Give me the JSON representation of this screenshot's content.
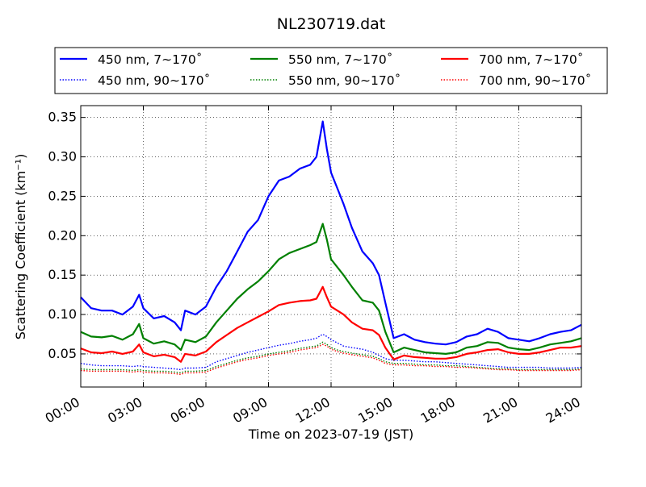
{
  "chart_data": {
    "type": "line",
    "title": "NL230719.dat",
    "xlabel": "Time on 2023-07-19 (JST)",
    "ylabel": "Scattering Coefficient (km⁻¹)",
    "xlim": [
      0,
      24
    ],
    "ylim": [
      0.008,
      0.365
    ],
    "x_unit": "hours",
    "x_ticks": [
      0,
      3,
      6,
      9,
      12,
      15,
      18,
      21,
      24
    ],
    "x_tick_labels": [
      "00:00",
      "03:00",
      "06:00",
      "09:00",
      "12:00",
      "15:00",
      "18:00",
      "21:00",
      "24:00"
    ],
    "y_ticks": [
      0.05,
      0.1,
      0.15,
      0.2,
      0.25,
      0.3,
      0.35
    ],
    "y_tick_labels": [
      "0.05",
      "0.10",
      "0.15",
      "0.20",
      "0.25",
      "0.30",
      "0.35"
    ],
    "grid": true,
    "legend_position": "top",
    "x": [
      0,
      0.5,
      1,
      1.5,
      2,
      2.5,
      2.8,
      3,
      3.5,
      4,
      4.5,
      4.8,
      5,
      5.5,
      6,
      6.5,
      7,
      7.5,
      8,
      8.5,
      9,
      9.5,
      10,
      10.5,
      11,
      11.3,
      11.6,
      11.8,
      12,
      12.3,
      12.6,
      13,
      13.5,
      14,
      14.3,
      14.6,
      15,
      15.5,
      16,
      16.5,
      17,
      17.5,
      18,
      18.5,
      19,
      19.5,
      20,
      20.5,
      21,
      21.5,
      22,
      22.5,
      23,
      23.5,
      24
    ],
    "series": [
      {
        "name": "450 nm, 7∼170˚",
        "color": "#0000ff",
        "style": "solid",
        "values": [
          0.122,
          0.108,
          0.105,
          0.105,
          0.1,
          0.11,
          0.125,
          0.108,
          0.095,
          0.098,
          0.09,
          0.08,
          0.105,
          0.1,
          0.11,
          0.135,
          0.155,
          0.18,
          0.205,
          0.22,
          0.25,
          0.27,
          0.275,
          0.285,
          0.29,
          0.3,
          0.345,
          0.31,
          0.28,
          0.26,
          0.24,
          0.21,
          0.18,
          0.165,
          0.15,
          0.115,
          0.07,
          0.075,
          0.068,
          0.065,
          0.063,
          0.062,
          0.065,
          0.072,
          0.075,
          0.082,
          0.078,
          0.07,
          0.068,
          0.066,
          0.07,
          0.075,
          0.078,
          0.08,
          0.087
        ]
      },
      {
        "name": "450 nm, 90∼170˚",
        "color": "#0000ff",
        "style": "dotted",
        "values": [
          0.038,
          0.036,
          0.035,
          0.035,
          0.035,
          0.034,
          0.035,
          0.034,
          0.033,
          0.032,
          0.031,
          0.03,
          0.032,
          0.032,
          0.033,
          0.04,
          0.044,
          0.048,
          0.052,
          0.055,
          0.058,
          0.061,
          0.063,
          0.066,
          0.068,
          0.07,
          0.075,
          0.072,
          0.068,
          0.064,
          0.06,
          0.058,
          0.056,
          0.052,
          0.048,
          0.044,
          0.042,
          0.042,
          0.041,
          0.04,
          0.04,
          0.039,
          0.038,
          0.037,
          0.036,
          0.035,
          0.034,
          0.033,
          0.033,
          0.033,
          0.033,
          0.032,
          0.032,
          0.032,
          0.033
        ]
      },
      {
        "name": "550 nm, 7∼170˚",
        "color": "#008000",
        "style": "solid",
        "values": [
          0.078,
          0.072,
          0.071,
          0.073,
          0.068,
          0.075,
          0.088,
          0.07,
          0.063,
          0.066,
          0.062,
          0.055,
          0.068,
          0.065,
          0.072,
          0.09,
          0.105,
          0.12,
          0.132,
          0.142,
          0.155,
          0.17,
          0.178,
          0.183,
          0.188,
          0.192,
          0.215,
          0.195,
          0.17,
          0.16,
          0.15,
          0.135,
          0.118,
          0.115,
          0.105,
          0.078,
          0.052,
          0.058,
          0.055,
          0.052,
          0.051,
          0.05,
          0.052,
          0.058,
          0.06,
          0.065,
          0.064,
          0.058,
          0.056,
          0.055,
          0.058,
          0.062,
          0.064,
          0.066,
          0.07
        ]
      },
      {
        "name": "550 nm, 90∼170˚",
        "color": "#008000",
        "style": "dotted",
        "values": [
          0.031,
          0.03,
          0.03,
          0.03,
          0.03,
          0.029,
          0.03,
          0.029,
          0.028,
          0.028,
          0.027,
          0.026,
          0.028,
          0.028,
          0.029,
          0.034,
          0.038,
          0.042,
          0.045,
          0.047,
          0.05,
          0.052,
          0.054,
          0.057,
          0.059,
          0.06,
          0.065,
          0.062,
          0.058,
          0.055,
          0.053,
          0.051,
          0.049,
          0.047,
          0.044,
          0.04,
          0.038,
          0.038,
          0.037,
          0.036,
          0.036,
          0.035,
          0.035,
          0.034,
          0.033,
          0.032,
          0.031,
          0.031,
          0.03,
          0.03,
          0.03,
          0.03,
          0.03,
          0.03,
          0.031
        ]
      },
      {
        "name": "700 nm, 7∼170˚",
        "color": "#ff0000",
        "style": "solid",
        "values": [
          0.057,
          0.052,
          0.051,
          0.053,
          0.05,
          0.053,
          0.062,
          0.052,
          0.047,
          0.049,
          0.046,
          0.04,
          0.05,
          0.048,
          0.053,
          0.065,
          0.074,
          0.083,
          0.09,
          0.097,
          0.104,
          0.112,
          0.115,
          0.117,
          0.118,
          0.12,
          0.135,
          0.122,
          0.11,
          0.105,
          0.1,
          0.09,
          0.082,
          0.08,
          0.074,
          0.058,
          0.043,
          0.048,
          0.046,
          0.045,
          0.044,
          0.044,
          0.046,
          0.05,
          0.052,
          0.055,
          0.056,
          0.052,
          0.05,
          0.05,
          0.052,
          0.055,
          0.058,
          0.058,
          0.06
        ]
      },
      {
        "name": "700 nm, 90∼170˚",
        "color": "#ff0000",
        "style": "dotted",
        "values": [
          0.029,
          0.028,
          0.028,
          0.028,
          0.028,
          0.027,
          0.028,
          0.027,
          0.026,
          0.026,
          0.025,
          0.024,
          0.026,
          0.026,
          0.027,
          0.032,
          0.036,
          0.04,
          0.043,
          0.045,
          0.048,
          0.05,
          0.052,
          0.055,
          0.057,
          0.058,
          0.062,
          0.06,
          0.056,
          0.053,
          0.051,
          0.049,
          0.047,
          0.045,
          0.042,
          0.038,
          0.036,
          0.036,
          0.035,
          0.035,
          0.034,
          0.034,
          0.033,
          0.033,
          0.032,
          0.031,
          0.03,
          0.03,
          0.029,
          0.029,
          0.029,
          0.029,
          0.029,
          0.029,
          0.03
        ]
      }
    ]
  }
}
